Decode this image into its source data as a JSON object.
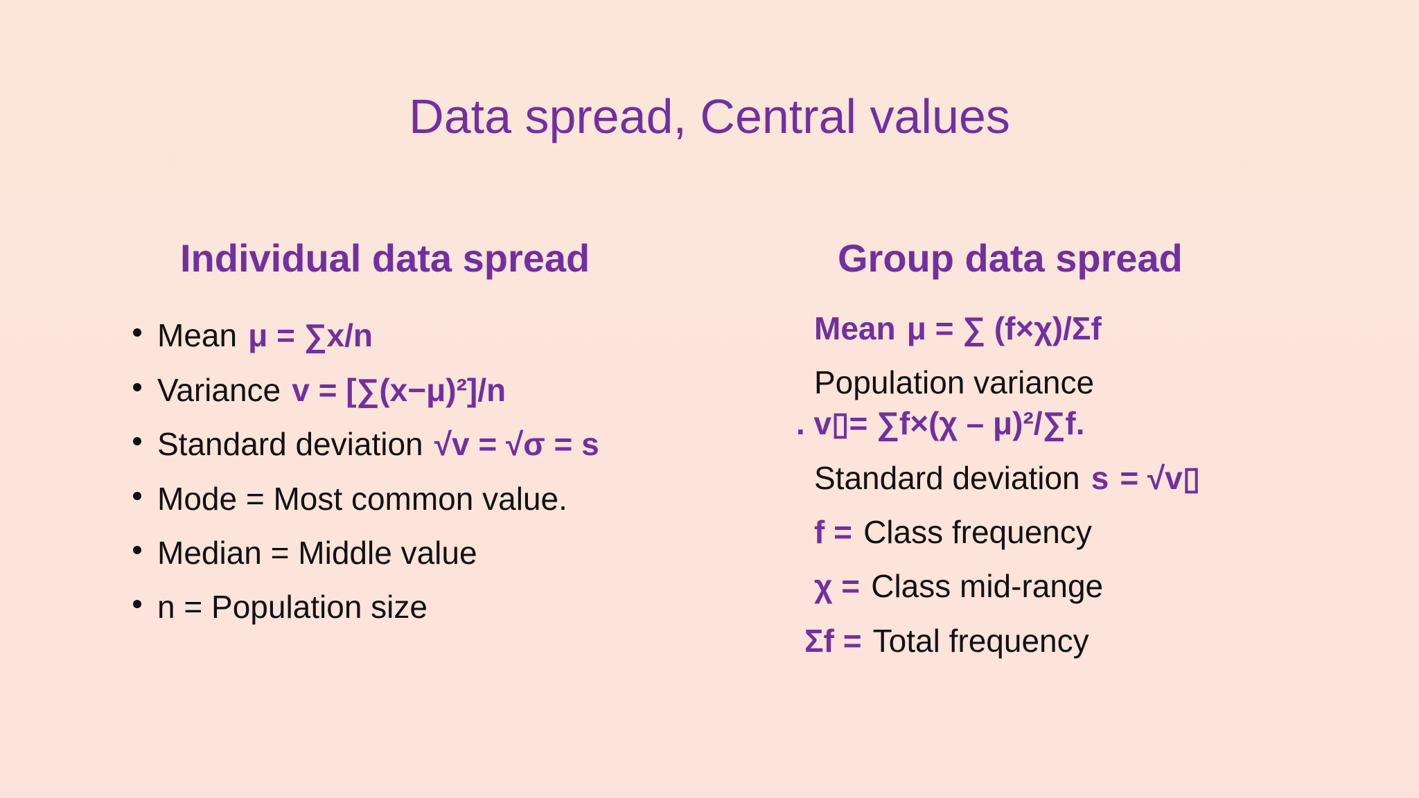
{
  "title": "Data spread, Central values",
  "columns": [
    {
      "heading": "Individual data spread",
      "items": [
        {
          "parts": [
            {
              "text": "Mean",
              "emphasis": false
            },
            {
              "text": "μ = ∑x/n",
              "emphasis": true
            }
          ]
        },
        {
          "parts": [
            {
              "text": "Variance",
              "emphasis": false
            },
            {
              "text": "v = [∑(x−μ)²]/n",
              "emphasis": true
            }
          ]
        },
        {
          "parts": [
            {
              "text": "Standard deviation",
              "emphasis": false
            },
            {
              "text": "√v = √σ = s",
              "emphasis": true
            }
          ]
        },
        {
          "parts": [
            {
              "text": "Mode = Most common value.",
              "emphasis": false
            }
          ]
        },
        {
          "parts": [
            {
              "text": "Median = Middle value",
              "emphasis": false
            }
          ]
        },
        {
          "parts": [
            {
              "text": "n = Population size",
              "emphasis": false
            }
          ]
        }
      ]
    },
    {
      "heading": "Group data spread",
      "items": [
        {
          "parts": [
            {
              "text": "Mean",
              "emphasis": true
            },
            {
              "text": "μ = ∑ (f×χ)/Σf",
              "emphasis": true
            }
          ]
        },
        {
          "parts": [
            {
              "text": "Population variance",
              "emphasis": false
            }
          ]
        },
        {
          "parts": [
            {
              "text": ". v▯= ∑f×(χ – μ)²/∑f.",
              "emphasis": true
            }
          ]
        },
        {
          "parts": [
            {
              "text": "Standard deviation",
              "emphasis": false
            },
            {
              "text": "s",
              "emphasis": true
            },
            {
              "text": "= √v▯",
              "emphasis": true
            }
          ]
        },
        {
          "parts": [
            {
              "text": "f =",
              "emphasis": true
            },
            {
              "text": "Class frequency",
              "emphasis": false
            }
          ]
        },
        {
          "parts": [
            {
              "text": "χ =",
              "emphasis": true
            },
            {
              "text": "Class mid-range",
              "emphasis": false
            }
          ]
        },
        {
          "parts": [
            {
              "text": "Σf =",
              "emphasis": true
            },
            {
              "text": "Total frequency",
              "emphasis": false
            }
          ]
        }
      ]
    }
  ]
}
